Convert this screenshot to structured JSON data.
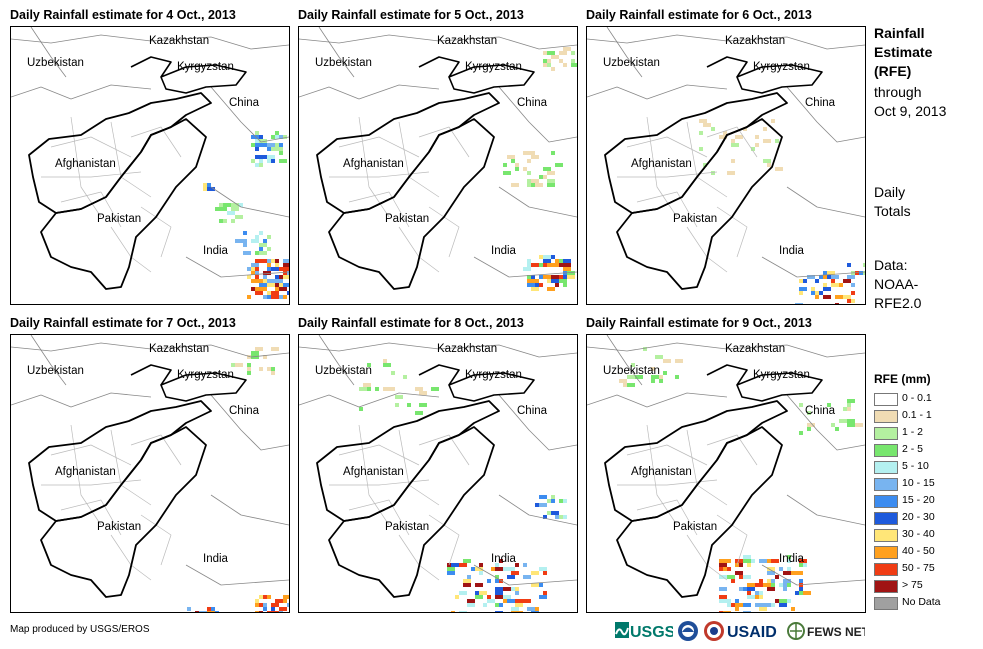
{
  "panels": [
    {
      "title": "Daily Rainfall estimate for 4 Oct., 2013"
    },
    {
      "title": "Daily Rainfall estimate for 5 Oct., 2013"
    },
    {
      "title": "Daily Rainfall estimate for 6 Oct., 2013"
    },
    {
      "title": "Daily Rainfall estimate for 7 Oct., 2013"
    },
    {
      "title": "Daily Rainfall estimate for 8 Oct., 2013"
    },
    {
      "title": "Daily Rainfall estimate for 9 Oct., 2013"
    }
  ],
  "map_labels": {
    "kazakhstan": "Kazakhstan",
    "uzbekistan": "Uzbekistan",
    "kyrgyzstan": "Kyrgyzstan",
    "china": "China",
    "afghanistan": "Afghanistan",
    "pakistan": "Pakistan",
    "india": "India"
  },
  "sidebar": {
    "title_line1": "Rainfall",
    "title_line2": "Estimate",
    "title_line3": "(RFE)",
    "through_line1": "through",
    "through_line2": "Oct 9, 2013",
    "daily_line1": "Daily",
    "daily_line2": "Totals",
    "data_line1": "Data:",
    "data_line2": "NOAA-",
    "data_line3": "RFE2.0"
  },
  "legend": {
    "title": "RFE (mm)",
    "items": [
      {
        "label": "0 - 0.1",
        "color": "#ffffff"
      },
      {
        "label": "0.1 - 1",
        "color": "#f0dcb4"
      },
      {
        "label": "1 - 2",
        "color": "#b4f0a0"
      },
      {
        "label": "2 - 5",
        "color": "#78e66e"
      },
      {
        "label": "5 - 10",
        "color": "#b4f0f0"
      },
      {
        "label": "10 - 15",
        "color": "#78b4f0"
      },
      {
        "label": "15 - 20",
        "color": "#3c8cf0"
      },
      {
        "label": "20 - 30",
        "color": "#1e5adc"
      },
      {
        "label": "30 - 40",
        "color": "#ffe678"
      },
      {
        "label": "40 - 50",
        "color": "#ffa01e"
      },
      {
        "label": "50 - 75",
        "color": "#f03c14"
      },
      {
        "label": "> 75",
        "color": "#a01414"
      },
      {
        "label": "No Data",
        "color": "#a0a0a0"
      }
    ]
  },
  "footer": {
    "credit": "Map produced by USGS/EROS"
  },
  "logos": {
    "usgs": "USGS",
    "usaid": "USAID",
    "fewsnet": "FEWS NET"
  }
}
